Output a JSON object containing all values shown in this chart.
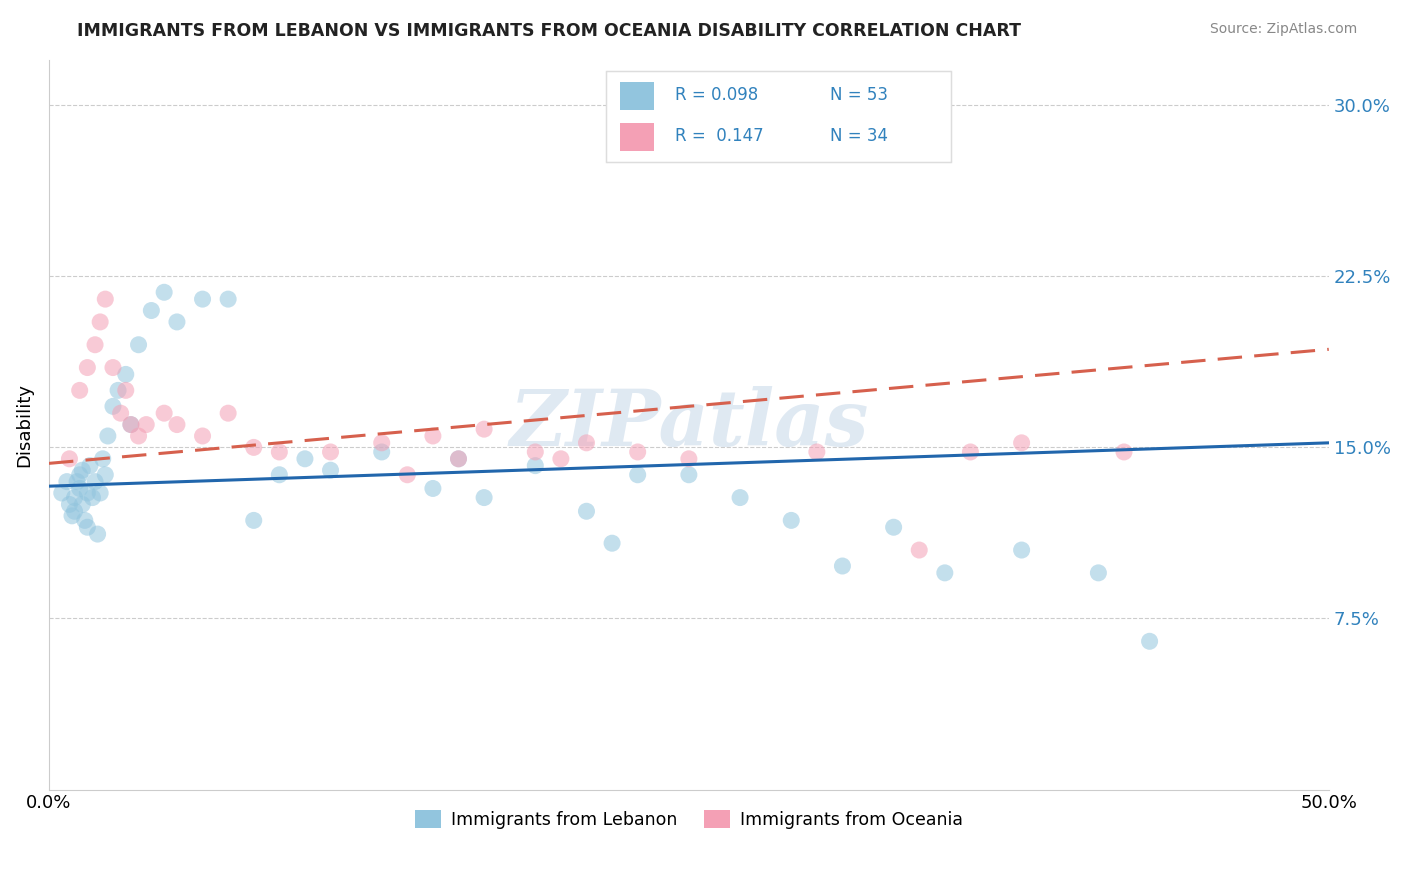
{
  "title": "IMMIGRANTS FROM LEBANON VS IMMIGRANTS FROM OCEANIA DISABILITY CORRELATION CHART",
  "source": "Source: ZipAtlas.com",
  "ylabel": "Disability",
  "xlim": [
    0.0,
    0.5
  ],
  "ylim": [
    0.0,
    0.32
  ],
  "ytick_positions": [
    0.075,
    0.15,
    0.225,
    0.3
  ],
  "ytick_labels": [
    "7.5%",
    "15.0%",
    "22.5%",
    "30.0%"
  ],
  "xtick_positions": [
    0.0,
    0.5
  ],
  "xtick_labels": [
    "0.0%",
    "50.0%"
  ],
  "color_blue": "#92c5de",
  "color_pink": "#f4a0b5",
  "color_blue_line": "#2166ac",
  "color_pink_line": "#d6604d",
  "background_color": "#ffffff",
  "watermark": "ZIPatlas",
  "blue_scatter_x": [
    0.005,
    0.007,
    0.008,
    0.009,
    0.01,
    0.01,
    0.011,
    0.012,
    0.012,
    0.013,
    0.013,
    0.014,
    0.015,
    0.015,
    0.016,
    0.017,
    0.018,
    0.019,
    0.02,
    0.021,
    0.022,
    0.023,
    0.025,
    0.027,
    0.03,
    0.032,
    0.035,
    0.04,
    0.045,
    0.05,
    0.06,
    0.07,
    0.08,
    0.09,
    0.1,
    0.11,
    0.13,
    0.15,
    0.16,
    0.17,
    0.19,
    0.21,
    0.22,
    0.23,
    0.25,
    0.27,
    0.29,
    0.31,
    0.33,
    0.35,
    0.38,
    0.41,
    0.43
  ],
  "blue_scatter_y": [
    0.13,
    0.135,
    0.125,
    0.12,
    0.128,
    0.122,
    0.135,
    0.132,
    0.138,
    0.125,
    0.14,
    0.118,
    0.13,
    0.115,
    0.142,
    0.128,
    0.135,
    0.112,
    0.13,
    0.145,
    0.138,
    0.155,
    0.168,
    0.175,
    0.182,
    0.16,
    0.195,
    0.21,
    0.218,
    0.205,
    0.215,
    0.215,
    0.118,
    0.138,
    0.145,
    0.14,
    0.148,
    0.132,
    0.145,
    0.128,
    0.142,
    0.122,
    0.108,
    0.138,
    0.138,
    0.128,
    0.118,
    0.098,
    0.115,
    0.095,
    0.105,
    0.095,
    0.065
  ],
  "pink_scatter_x": [
    0.008,
    0.012,
    0.015,
    0.018,
    0.02,
    0.022,
    0.025,
    0.028,
    0.03,
    0.032,
    0.035,
    0.038,
    0.045,
    0.05,
    0.06,
    0.07,
    0.08,
    0.09,
    0.11,
    0.13,
    0.14,
    0.15,
    0.16,
    0.17,
    0.19,
    0.2,
    0.21,
    0.23,
    0.25,
    0.3,
    0.34,
    0.36,
    0.38,
    0.42
  ],
  "pink_scatter_y": [
    0.145,
    0.175,
    0.185,
    0.195,
    0.205,
    0.215,
    0.185,
    0.165,
    0.175,
    0.16,
    0.155,
    0.16,
    0.165,
    0.16,
    0.155,
    0.165,
    0.15,
    0.148,
    0.148,
    0.152,
    0.138,
    0.155,
    0.145,
    0.158,
    0.148,
    0.145,
    0.152,
    0.148,
    0.145,
    0.148,
    0.105,
    0.148,
    0.152,
    0.148
  ],
  "blue_line_x0": 0.0,
  "blue_line_y0": 0.133,
  "blue_line_x1": 0.5,
  "blue_line_y1": 0.152,
  "pink_line_x0": 0.0,
  "pink_line_y0": 0.143,
  "pink_line_x1": 0.5,
  "pink_line_y1": 0.193
}
